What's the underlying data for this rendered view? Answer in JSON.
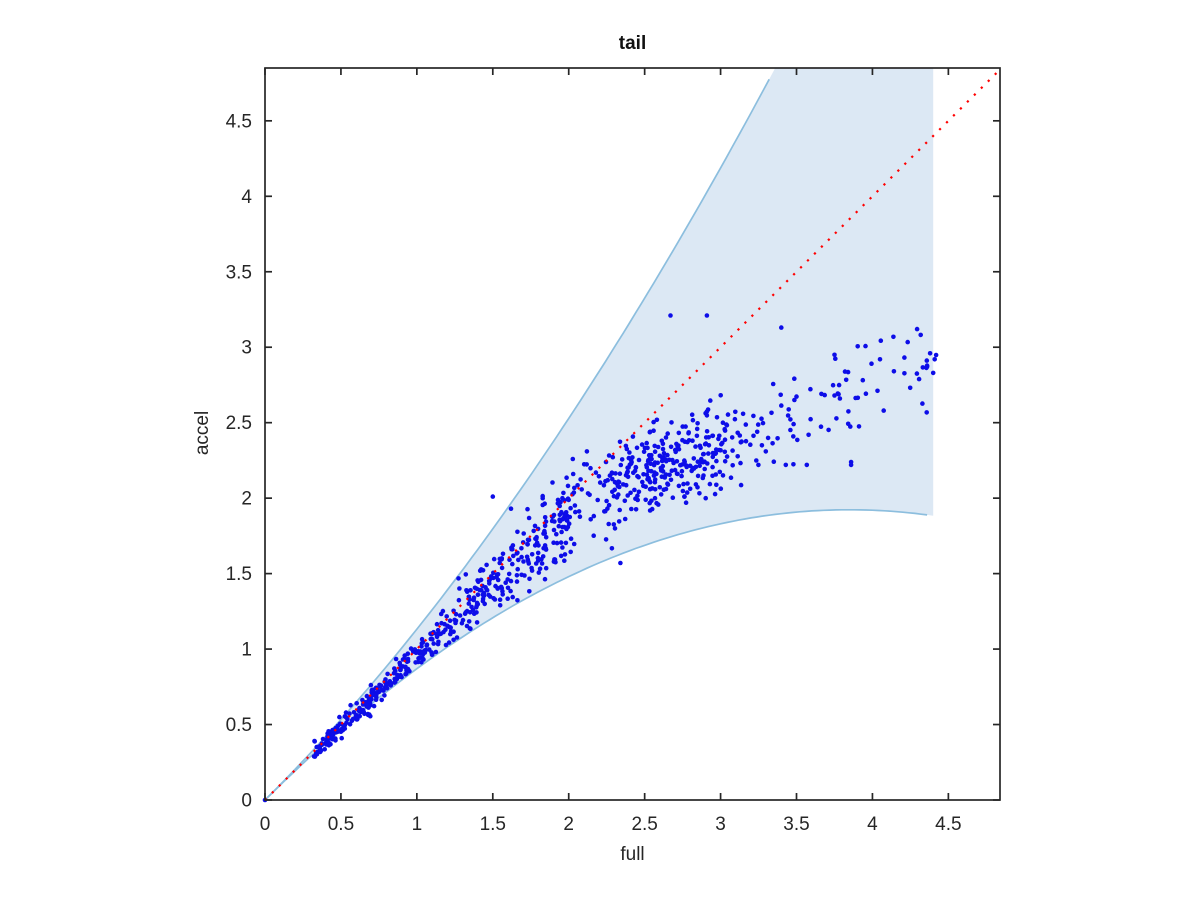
{
  "figure": {
    "background": "#ffffff",
    "axis_color": "#262626",
    "tick_label_color": "#262626"
  },
  "chart_data": {
    "type": "scatter",
    "title": "tail",
    "xlabel": "full",
    "ylabel": "accel",
    "xlim": [
      0,
      4.84
    ],
    "ylim": [
      0,
      4.85
    ],
    "grid": false,
    "box": true,
    "xticks": {
      "values": [
        0,
        0.5,
        1,
        1.5,
        2,
        2.5,
        3,
        3.5,
        4,
        4.5
      ],
      "labels": [
        "0",
        "0.5",
        "1",
        "1.5",
        "2",
        "2.5",
        "3",
        "3.5",
        "4",
        "4.5"
      ]
    },
    "yticks": {
      "values": [
        0,
        0.5,
        1,
        1.5,
        2,
        2.5,
        3,
        3.5,
        4,
        4.5
      ],
      "labels": [
        "0",
        "0.5",
        "1",
        "1.5",
        "2",
        "2.5",
        "3",
        "3.5",
        "4",
        "4.5"
      ]
    },
    "band": {
      "name": "confidence-band",
      "fill": "#dce8f4",
      "edge_color": "#8cbede",
      "edge_width": 1.7,
      "upper_curve": "y = x + 0.132*x^2 (clipped at top of axes, exits at x ~ 3.36)",
      "lower_curve": "y = x - 0.130*x^2 (flattens to ~1.88 at x = 4.4)",
      "c_upper": 0.132,
      "c_lower": 0.13,
      "x_end": 4.4
    },
    "identity_line": {
      "name": "identity-line",
      "style": "dotted",
      "color": "#ff0000",
      "width": 2.2,
      "points": [
        [
          0,
          0
        ],
        [
          4.84,
          4.84
        ]
      ]
    },
    "scatter": {
      "name": "scatter-points",
      "color": "#0d0de8",
      "marker_radius_px": 2.3,
      "seed": 20240613,
      "approx_n": 885,
      "mean_model": "y = min(0.94x, 1.18 + 0.39x) with gaussian spread; tight along diagonal for x<1.5, saturating cloud ~2.2-3.0 for x>2",
      "clusters": [
        {
          "n": 240,
          "x_min": 0.32,
          "x_max": 1.2,
          "mean": "linear",
          "slope": 0.96,
          "sd_base": 0.018,
          "sd_slope": 0.03,
          "clamp_band": true,
          "clamp_from_x": 0.8
        },
        {
          "n": 210,
          "x_min": 1.2,
          "x_max": 2.0,
          "mean": "linear",
          "slope": 0.95,
          "sd_base": 0.03,
          "sd_slope": 0.045,
          "clamp_band": true,
          "clamp_from_x": 0.0
        },
        {
          "n": 200,
          "x_min": 1.9,
          "x_max": 3.15,
          "mean": "sat",
          "sd_base": 0.165,
          "sd_slope": 0,
          "y_min": 1.55,
          "y_max": 3.28
        },
        {
          "n": 150,
          "x_min": 2.25,
          "x_max": 3.05,
          "mean": "sat",
          "sd_base": 0.15,
          "sd_slope": 0,
          "y_min": 1.75,
          "y_max": 3.25
        },
        {
          "n": 85,
          "x_min": 3.15,
          "x_max": 4.42,
          "mean": "sat",
          "sd_base": 0.175,
          "sd_slope": 0,
          "y_min": 2.22,
          "y_max": 3.12
        }
      ],
      "notable_points": [
        [
          0.0,
          0.0
        ],
        [
          2.67,
          3.21
        ],
        [
          2.91,
          3.21
        ],
        [
          3.4,
          3.13
        ],
        [
          2.34,
          1.57
        ],
        [
          1.5,
          2.01
        ],
        [
          1.62,
          1.93
        ],
        [
          4.38,
          2.96
        ],
        [
          4.41,
          2.92
        ],
        [
          4.4,
          2.83
        ],
        [
          4.36,
          2.87
        ],
        [
          3.75,
          2.95
        ],
        [
          4.05,
          2.92
        ],
        [
          2.12,
          2.31
        ]
      ]
    }
  }
}
